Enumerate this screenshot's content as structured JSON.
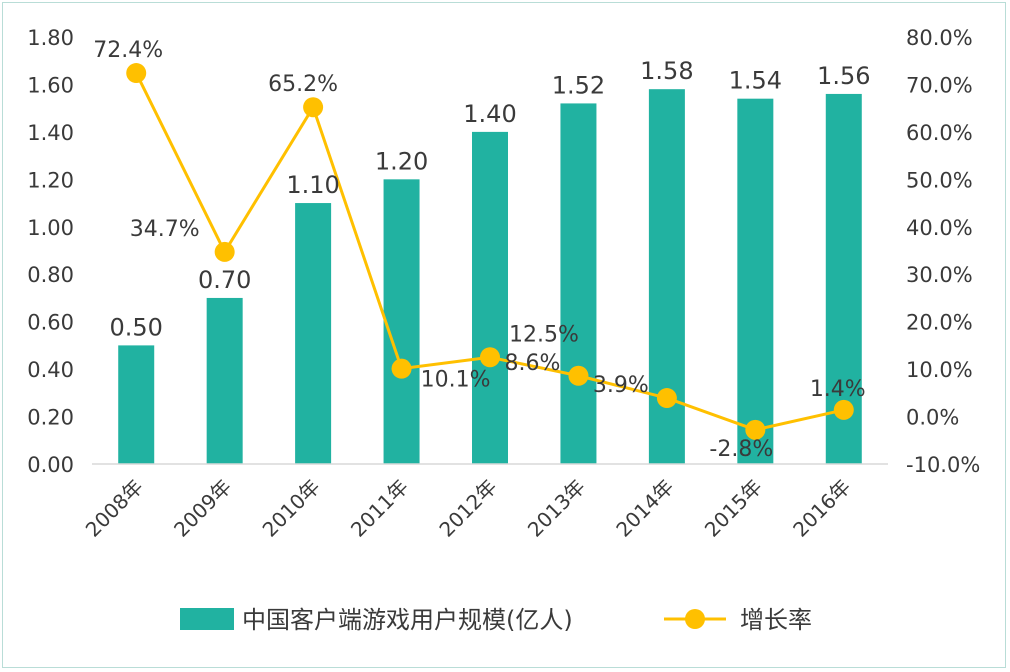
{
  "chart_data": {
    "type": "bar+line",
    "categories": [
      "2008年",
      "2009年",
      "2010年",
      "2011年",
      "2012年",
      "2013年",
      "2014年",
      "2015年",
      "2016年"
    ],
    "series": [
      {
        "name": "中国客户端游戏用户规模(亿人)",
        "type": "bar",
        "axis": "left",
        "values": [
          0.5,
          0.7,
          1.1,
          1.2,
          1.4,
          1.52,
          1.58,
          1.54,
          1.56
        ],
        "labels": [
          "0.50",
          "0.70",
          "1.10",
          "1.20",
          "1.40",
          "1.52",
          "1.58",
          "1.54",
          "1.56"
        ],
        "color": "#21b2a1"
      },
      {
        "name": "增长率",
        "type": "line",
        "axis": "right",
        "values": [
          72.4,
          34.7,
          65.2,
          10.1,
          12.5,
          8.6,
          3.9,
          -2.8,
          1.4
        ],
        "labels": [
          "72.4%",
          "34.7%",
          "65.2%",
          "10.1%",
          "12.5%",
          "8.6%",
          "3.9%",
          "-2.8%",
          "1.4%"
        ],
        "color": "#ffc000"
      }
    ],
    "y_left": {
      "range": [
        0,
        1.8
      ],
      "ticks": [
        "0.00",
        "0.20",
        "0.40",
        "0.60",
        "0.80",
        "1.00",
        "1.20",
        "1.40",
        "1.60",
        "1.80"
      ]
    },
    "y_right": {
      "range": [
        -10,
        80
      ],
      "ticks": [
        "-10.0%",
        "0.0%",
        "10.0%",
        "20.0%",
        "30.0%",
        "40.0%",
        "50.0%",
        "60.0%",
        "70.0%",
        "80.0%"
      ]
    },
    "grid": false,
    "legend_position": "bottom"
  }
}
